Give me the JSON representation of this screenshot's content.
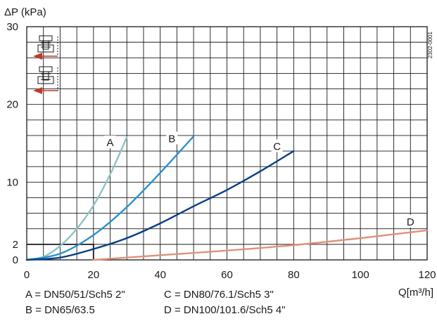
{
  "chart_data": {
    "type": "line",
    "ylabel": "ΔP (kPa)",
    "xlabel": "Q[m³/h]",
    "code": "2302-0001",
    "xlim": [
      0,
      120
    ],
    "ylim": [
      0,
      30
    ],
    "xticks": [
      0,
      20,
      40,
      60,
      80,
      100,
      120
    ],
    "yticks": [
      0,
      2,
      10,
      20,
      30
    ],
    "grid": true,
    "reference_point": {
      "x": 20,
      "y": 2
    },
    "series": [
      {
        "name": "A",
        "color": "#8cc4c4",
        "x": [
          0,
          5,
          10,
          15,
          20,
          25,
          30
        ],
        "y": [
          0,
          0.4,
          1.8,
          4.0,
          7.0,
          11.0,
          15.8
        ]
      },
      {
        "name": "B",
        "color": "#2a90cf",
        "x": [
          0,
          10,
          20,
          30,
          40,
          50
        ],
        "y": [
          0,
          0.8,
          3.2,
          6.8,
          11.2,
          15.9
        ]
      },
      {
        "name": "C",
        "color": "#083f84",
        "x": [
          0,
          10,
          20,
          30,
          40,
          50,
          60,
          70,
          80
        ],
        "y": [
          0,
          0.3,
          1.4,
          2.8,
          4.7,
          6.9,
          9.0,
          11.4,
          14.0
        ]
      },
      {
        "name": "D",
        "color": "#e0907b",
        "x": [
          20,
          40,
          60,
          80,
          100,
          120
        ],
        "y": [
          0,
          0.6,
          1.2,
          1.9,
          2.8,
          3.8
        ]
      }
    ]
  },
  "legend": {
    "a": "A = DN50/51/Sch5 2\"",
    "b": "B = DN65/63.5",
    "c": "C = DN80/76.1/Sch5 3\"",
    "d": "D = DN100/101.6/Sch5 4\""
  }
}
